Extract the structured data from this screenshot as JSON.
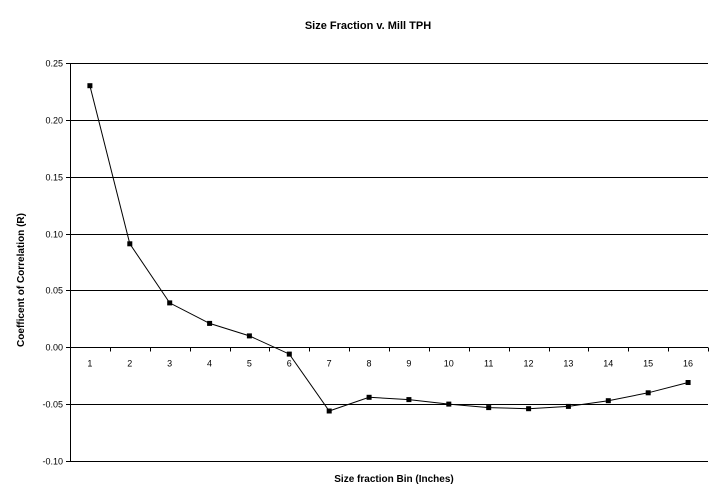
{
  "chart_data": {
    "type": "line",
    "title": "Size Fraction v. Mill TPH",
    "xlabel": "Size fraction Bin (Inches)",
    "ylabel": "Coefficent of Correlation (R)",
    "categories": [
      "1",
      "2",
      "3",
      "4",
      "5",
      "6",
      "7",
      "8",
      "9",
      "10",
      "11",
      "12",
      "13",
      "14",
      "15",
      "16"
    ],
    "series": [
      {
        "values": [
          0.23,
          0.091,
          0.039,
          0.021,
          0.01,
          -0.006,
          -0.056,
          -0.044,
          -0.046,
          -0.05,
          -0.053,
          -0.054,
          -0.052,
          -0.047,
          -0.04,
          -0.031
        ]
      }
    ],
    "ylim": [
      -0.1,
      0.25
    ],
    "yticks": [
      -0.1,
      -0.05,
      0.0,
      0.05,
      0.1,
      0.15,
      0.2,
      0.25
    ],
    "ytick_labels": [
      "-0.10",
      "-0.05",
      "0.00",
      "0.05",
      "0.10",
      "0.15",
      "0.20",
      "0.25"
    ],
    "grid": "horizontal",
    "legend": "none",
    "colors": {
      "line": "#000000",
      "marker": "#000000",
      "grid": "#000000",
      "background": "#ffffff"
    }
  }
}
